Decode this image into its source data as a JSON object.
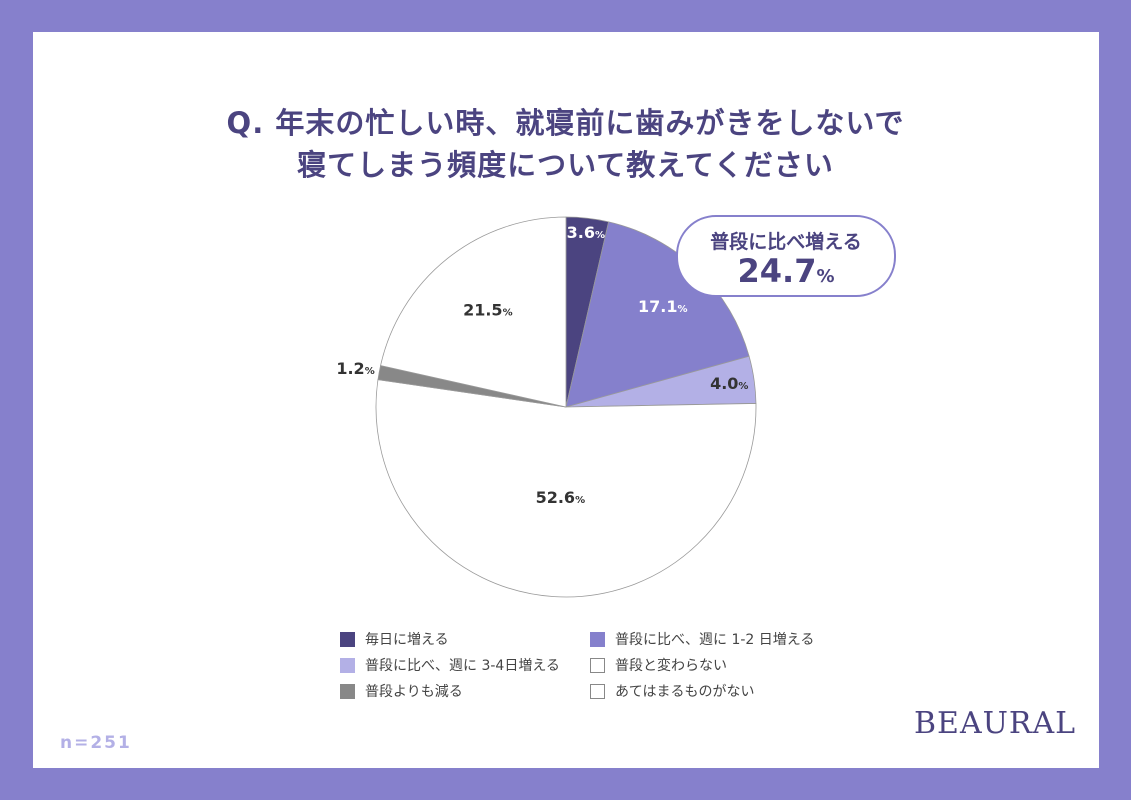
{
  "title_lines": [
    "Q. 年末の忙しい時、就寝前に歯みがきをしないで",
    "寝てしまう頻度について教えてください"
  ],
  "chart_data": {
    "type": "pie",
    "unit": "%",
    "start": "top, clockwise",
    "slices": [
      {
        "label": "毎日に増える",
        "value": 3.6,
        "color": "#4b4480",
        "text_color": "#ffffff"
      },
      {
        "label": "普段に比べ、週に 1-2 日増える",
        "value": 17.1,
        "color": "#8580cc",
        "text_color": "#ffffff"
      },
      {
        "label": "普段に比べ、週に 3-4日増える",
        "value": 4.0,
        "color": "#b3b0e6",
        "text_color": "#333333"
      },
      {
        "label": "普段と変わらない",
        "value": 52.6,
        "color": "#ffffff",
        "text_color": "#333333"
      },
      {
        "label": "普段よりも減る",
        "value": 1.2,
        "color": "#888888",
        "text_color": "#333333"
      },
      {
        "label": "あてはまるものがない",
        "value": 21.5,
        "color": "#ffffff",
        "text_color": "#333333"
      }
    ],
    "legend_order": [
      0,
      1,
      2,
      3,
      4,
      5
    ],
    "callout": {
      "label": "普段に比べ増える",
      "value": "24.7",
      "unit": "%"
    }
  },
  "sample": "n=251",
  "logo": "BEAURAL"
}
